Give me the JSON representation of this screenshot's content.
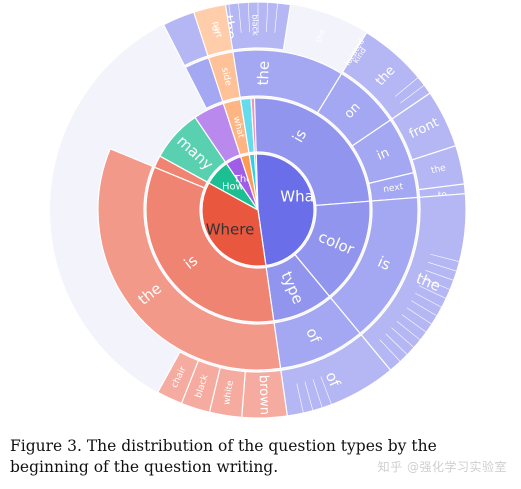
{
  "chart_data": {
    "type": "sunburst",
    "colors": {
      "What": "#6a6ee8",
      "Where": "#ea573f",
      "How": "#1bbf92",
      "Which": "#a05de8",
      "Why": "#ff9a55",
      "Who": "#2ccfe7",
      "Other": "#ee6aa3"
    },
    "rings": [
      [
        {
          "label": "What",
          "group": "What",
          "start": -0.3,
          "end": 1.91
        },
        {
          "label": "Where",
          "group": "Where",
          "start": 1.91,
          "end": 3.32
        },
        {
          "label": "How",
          "group": "How",
          "start": 3.32,
          "end": 3.62
        },
        {
          "label": "The",
          "group": "Which",
          "start": 3.62,
          "end": 3.8
        },
        {
          "label": "",
          "group": "Why",
          "start": 3.8,
          "end": 3.9
        },
        {
          "label": "",
          "group": "Who",
          "start": 3.9,
          "end": 3.96
        },
        {
          "label": "",
          "group": "Other",
          "start": 3.96,
          "end": 3.98
        }
      ],
      [
        {
          "label": "is",
          "group": "What",
          "start": -0.3,
          "end": 0.95
        },
        {
          "label": "color",
          "group": "What",
          "start": 0.95,
          "end": 1.56
        },
        {
          "label": "type",
          "group": "What",
          "start": 1.56,
          "end": 1.91
        },
        {
          "label": "is",
          "group": "Where",
          "start": 1.91,
          "end": 3.25
        },
        {
          "label": "",
          "group": "Where",
          "start": 3.25,
          "end": 3.32
        },
        {
          "label": "many",
          "group": "How",
          "start": 3.32,
          "end": 3.62
        },
        {
          "label": "",
          "group": "Which",
          "start": 3.62,
          "end": 3.8
        },
        {
          "label": "what",
          "group": "Why",
          "start": 3.8,
          "end": 3.9
        },
        {
          "label": "",
          "group": "Who",
          "start": 3.9,
          "end": 3.96
        },
        {
          "label": "",
          "group": "Other",
          "start": 3.96,
          "end": 3.98
        }
      ],
      [
        {
          "label": "the",
          "group": "What",
          "start": -0.3,
          "end": 0.35
        },
        {
          "label": "on",
          "group": "What",
          "start": 0.35,
          "end": 0.62
        },
        {
          "label": "in",
          "group": "What",
          "start": 0.62,
          "end": 0.85
        },
        {
          "label": "next",
          "group": "What",
          "start": 0.85,
          "end": 0.95
        },
        {
          "label": "is",
          "group": "What",
          "start": 0.95,
          "end": 1.56
        },
        {
          "label": "of",
          "group": "What",
          "start": 1.56,
          "end": 1.91
        },
        {
          "label": "the",
          "group": "Where",
          "start": 1.91,
          "end": 3.25
        },
        {
          "label": "side",
          "group": "Why",
          "start": 3.8,
          "end": 3.9
        }
      ],
      [
        {
          "label": "the",
          "group": "What",
          "start": -0.3,
          "end": 0.1
        },
        {
          "label": "the",
          "group": "What",
          "start": 0.35,
          "end": 0.62
        },
        {
          "label": "front",
          "group": "What",
          "start": 0.62,
          "end": 0.8
        },
        {
          "label": "the",
          "group": "What",
          "start": 0.8,
          "end": 0.92
        },
        {
          "label": "to",
          "group": "What",
          "start": 0.92,
          "end": 0.98
        },
        {
          "label": "the",
          "group": "What",
          "start": 0.95,
          "end": 1.56
        },
        {
          "label": "of",
          "group": "What",
          "start": 1.56,
          "end": 1.91
        },
        {
          "label": "brown",
          "group": "Where",
          "start": 1.91,
          "end": 2.05
        },
        {
          "label": "white",
          "group": "Where",
          "start": 2.05,
          "end": 2.15
        },
        {
          "label": "black",
          "group": "Where",
          "start": 2.15,
          "end": 2.24
        },
        {
          "label": "chair",
          "group": "Where",
          "start": 2.24,
          "end": 2.32
        },
        {
          "label": "of",
          "group": "Why",
          "start": 3.8,
          "end": 3.9
        }
      ]
    ]
  },
  "small_labels": [
    {
      "label": "located",
      "angle": 0.35
    },
    {
      "label": "black",
      "angle": 3.99
    },
    {
      "label": "kind",
      "angle": 4.37
    },
    {
      "label": "part",
      "angle": 3.86
    },
    {
      "label": "the",
      "angle": 0.22
    }
  ],
  "caption": "Figure 3. The distribution of the question types by the beginning of the question writing.",
  "watermark": "知乎 @强化学习实验室"
}
